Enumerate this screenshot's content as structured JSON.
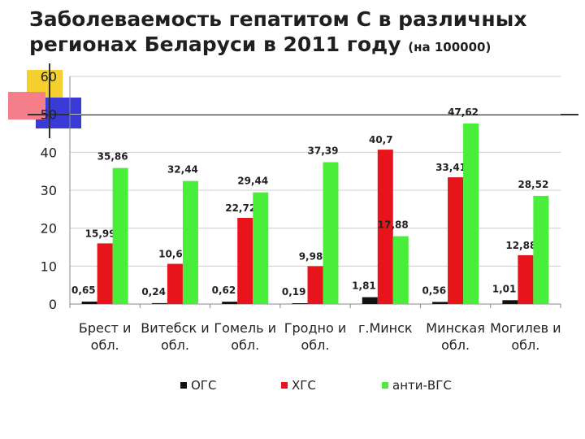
{
  "title": {
    "main": "Заболеваемость гепатитом С в различных регионах Беларуси в 2011 году",
    "sub": "(на 100000)"
  },
  "colors": {
    "ОГС": "#111111",
    "ХГС": "#e8141c",
    "анти-ВГС": "#49ee3a",
    "deco_yellow": "#f5cf2e",
    "deco_blue": "#3a3ad6",
    "deco_pink": "#f47f8a"
  },
  "chart_data": {
    "type": "bar",
    "title": "",
    "xlabel": "",
    "ylabel": "",
    "ylim": [
      0,
      60
    ],
    "yticks": [
      0,
      10,
      20,
      30,
      40,
      50,
      60
    ],
    "grid": true,
    "legend_position": "bottom",
    "categories": [
      [
        "Брест и",
        "обл."
      ],
      [
        "Витебск и",
        "обл."
      ],
      [
        "Гомель и",
        "обл."
      ],
      [
        "Гродно и",
        "обл."
      ],
      [
        "г.Минск",
        ""
      ],
      [
        "Минская",
        "обл."
      ],
      [
        "Могилев и",
        "обл."
      ]
    ],
    "series": [
      {
        "name": "ОГС",
        "values": [
          0.65,
          0.24,
          0.62,
          0.19,
          1.81,
          0.56,
          1.01
        ],
        "labels": [
          "0,65",
          "0,24",
          "0,62",
          "0,19",
          "1,81",
          "0,56",
          "1,01"
        ]
      },
      {
        "name": "ХГС",
        "values": [
          15.99,
          10.6,
          22.72,
          9.98,
          40.7,
          33.41,
          12.88
        ],
        "labels": [
          "15,99",
          "10,6",
          "22,72",
          "9,98",
          "40,7",
          "33,41",
          "12,88"
        ]
      },
      {
        "name": "анти-ВГС",
        "values": [
          35.86,
          32.44,
          29.44,
          37.39,
          17.88,
          47.62,
          28.52
        ],
        "labels": [
          "35,86",
          "32,44",
          "29,44",
          "37,39",
          "17,88",
          "47,62",
          "28,52"
        ]
      }
    ]
  }
}
